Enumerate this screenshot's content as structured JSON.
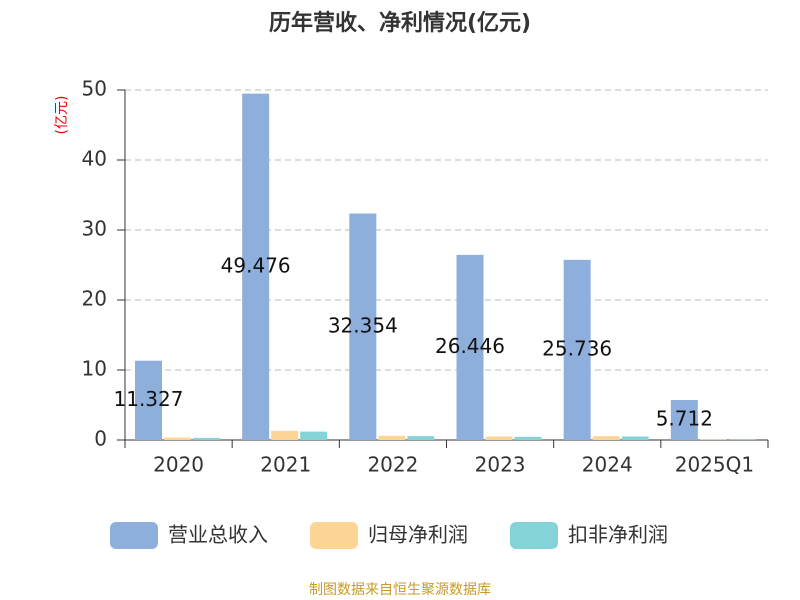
{
  "chart_data": {
    "type": "bar",
    "title": "历年营收、净利情况(亿元)",
    "y_label": "(亿元)",
    "categories": [
      "2020",
      "2021",
      "2022",
      "2023",
      "2024",
      "2025Q1"
    ],
    "series": [
      {
        "name": "营业总收入",
        "color": "#8eaedb",
        "values": [
          11.327,
          49.476,
          32.354,
          26.446,
          25.736,
          5.712
        ]
      },
      {
        "name": "归母净利润",
        "color": "#fdd696",
        "values": [
          0.35,
          1.3,
          0.6,
          0.5,
          0.55,
          0.05
        ]
      },
      {
        "name": "扣非净利润",
        "color": "#84d4d7",
        "values": [
          0.3,
          1.2,
          0.55,
          0.45,
          0.5,
          0.04
        ]
      }
    ],
    "ylim": [
      0,
      50
    ],
    "yticks": [
      0,
      10,
      20,
      30,
      40,
      50
    ],
    "grid": true,
    "source": "制图数据来自恒生聚源数据库"
  }
}
